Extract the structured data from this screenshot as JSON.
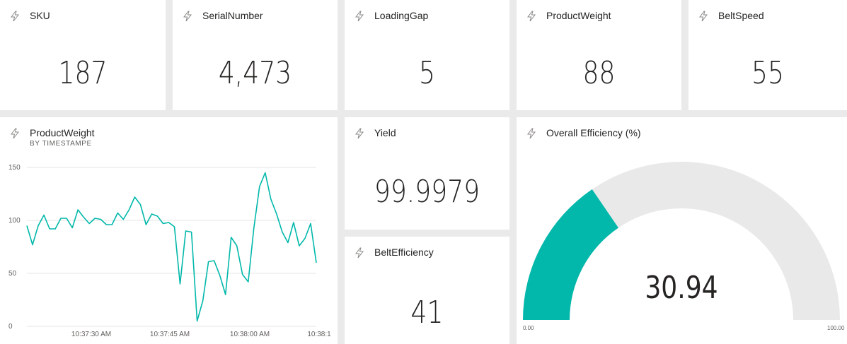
{
  "cards": [
    {
      "id": "sku",
      "title": "SKU",
      "value": "187"
    },
    {
      "id": "serialnumber",
      "title": "SerialNumber",
      "value": "4,473"
    },
    {
      "id": "loadinggap",
      "title": "LoadingGap",
      "value": "5"
    },
    {
      "id": "productweight",
      "title": "ProductWeight",
      "value": "88"
    },
    {
      "id": "beltspeed",
      "title": "BeltSpeed",
      "value": "55"
    }
  ],
  "yield": {
    "title": "Yield",
    "value": "99.9979"
  },
  "belt_efficiency": {
    "title": "BeltEfficiency",
    "value": "41"
  },
  "line_chart": {
    "title": "ProductWeight",
    "subtitle": "BY TIMESTAMPE",
    "y_ticks": [
      "150",
      "100",
      "50",
      "0"
    ],
    "x_ticks": [
      "10:37:30 AM",
      "10:37:45 AM",
      "10:38:00 AM",
      "10:38:1"
    ]
  },
  "gauge": {
    "title": "Overall Efficiency (%)",
    "value": "30.94",
    "min_label": "0.00",
    "max_label": "100.00"
  },
  "colors": {
    "accent": "#01b8aa",
    "gauge_track": "#e9e9e9",
    "gridline": "#e5e5e5"
  },
  "chart_data": [
    {
      "type": "line",
      "title": "ProductWeight",
      "subtitle": "BY TIMESTAMPE",
      "xlabel": "",
      "ylabel": "",
      "ylim": [
        0,
        150
      ],
      "grid": true,
      "x_tick_labels": [
        "10:37:30 AM",
        "10:37:45 AM",
        "10:38:00 AM",
        "10:38:1"
      ],
      "series": [
        {
          "values": [
            95,
            77,
            95,
            105,
            92,
            92,
            102,
            102,
            93,
            110,
            103,
            97,
            102,
            101,
            96,
            96,
            107,
            101,
            110,
            122,
            115,
            96,
            106,
            104,
            97,
            98,
            94,
            40,
            90,
            89,
            5,
            24,
            61,
            62,
            48,
            30,
            84,
            76,
            49,
            42,
            93,
            132,
            145,
            120,
            106,
            89,
            79,
            98,
            76,
            83,
            97,
            60
          ]
        }
      ]
    },
    {
      "type": "gauge",
      "title": "Overall Efficiency (%)",
      "value": 30.94,
      "min": 0,
      "max": 100
    }
  ]
}
